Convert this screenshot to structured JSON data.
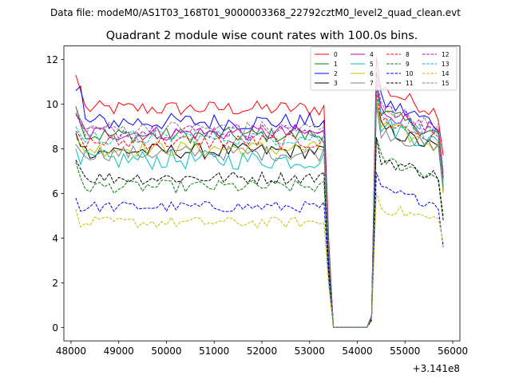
{
  "suptitle": "Data file: modeM0/AS1T03_168T01_9000003368_22792cztM0_level2_quad_clean.evt",
  "chart_data": {
    "type": "line",
    "title": "Quadrant 2 module wise count rates with 100.0s bins.",
    "xlabel": "",
    "ylabel": "",
    "x_offset_label": "+3.141e8",
    "xlim": [
      47850,
      56150
    ],
    "ylim": [
      -0.6,
      12.6
    ],
    "xticks": [
      48000,
      49000,
      50000,
      51000,
      52000,
      53000,
      54000,
      55000,
      56000
    ],
    "xtick_labels": [
      "48000",
      "49000",
      "50000",
      "51000",
      "52000",
      "53000",
      "54000",
      "55000",
      "56000"
    ],
    "yticks": [
      0,
      2,
      4,
      6,
      8,
      10,
      12
    ],
    "ytick_labels": [
      "0",
      "2",
      "4",
      "6",
      "8",
      "10",
      "12"
    ],
    "grid": false,
    "legend_position": "top-right",
    "legend_columns": 4,
    "time_grid": {
      "start": 48100,
      "step": 100,
      "count": 78
    },
    "gap": {
      "start": 53500,
      "end": 54200,
      "value": 0
    },
    "series": [
      {
        "name": "0",
        "color": "#ff0000",
        "dash": "solid",
        "base": 9.8,
        "end": 10.8,
        "first": 11.3,
        "second": 10.6,
        "last": 7.7,
        "noise": 0.35
      },
      {
        "name": "1",
        "color": "#008000",
        "dash": "solid",
        "base": 8.6,
        "end": 9.7,
        "first": 9.9,
        "second": 9.1,
        "last": 6.3,
        "noise": 0.35
      },
      {
        "name": "2",
        "color": "#0000ff",
        "dash": "solid",
        "base": 9.2,
        "end": 10.2,
        "first": 10.6,
        "second": 10.8,
        "last": 6.7,
        "noise": 0.4
      },
      {
        "name": "3",
        "color": "#000000",
        "dash": "solid",
        "base": 7.9,
        "end": 9.0,
        "first": 8.7,
        "second": 8.1,
        "last": 6.1,
        "noise": 0.35
      },
      {
        "name": "4",
        "color": "#c000c0",
        "dash": "solid",
        "base": 8.7,
        "end": 9.8,
        "first": 9.5,
        "second": 9.3,
        "last": 6.6,
        "noise": 0.35
      },
      {
        "name": "5",
        "color": "#00c0c0",
        "dash": "solid",
        "base": 7.5,
        "end": 9.2,
        "first": 8.0,
        "second": 7.3,
        "last": 6.2,
        "noise": 0.45
      },
      {
        "name": "6",
        "color": "#c0c000",
        "dash": "solid",
        "base": 8.0,
        "end": 9.1,
        "first": 8.5,
        "second": 8.2,
        "last": 6.0,
        "noise": 0.35
      },
      {
        "name": "7",
        "color": "#808080",
        "dash": "solid",
        "base": 7.8,
        "end": 8.9,
        "first": 8.2,
        "second": 7.9,
        "last": 6.2,
        "noise": 0.35
      },
      {
        "name": "8",
        "color": "#ff0000",
        "dash": "dashed",
        "base": 8.3,
        "end": 9.4,
        "first": 8.8,
        "second": 8.5,
        "last": 6.6,
        "noise": 0.35
      },
      {
        "name": "9",
        "color": "#008000",
        "dash": "dashed",
        "base": 6.3,
        "end": 7.6,
        "first": 7.4,
        "second": 6.7,
        "last": 5.0,
        "noise": 0.3
      },
      {
        "name": "10",
        "color": "#0000ff",
        "dash": "dashed",
        "base": 5.4,
        "end": 6.2,
        "first": 5.8,
        "second": 5.2,
        "last": 3.6,
        "noise": 0.25
      },
      {
        "name": "11",
        "color": "#000000",
        "dash": "dashed",
        "base": 6.7,
        "end": 7.6,
        "first": 7.5,
        "second": 7.1,
        "last": 4.8,
        "noise": 0.3
      },
      {
        "name": "12",
        "color": "#c000c0",
        "dash": "dashed",
        "base": 8.8,
        "end": 9.9,
        "first": 9.6,
        "second": 9.1,
        "last": 6.8,
        "noise": 0.35
      },
      {
        "name": "13",
        "color": "#00c0c0",
        "dash": "dashed",
        "base": 8.5,
        "end": 9.6,
        "first": 9.0,
        "second": 8.6,
        "last": 6.5,
        "noise": 0.35
      },
      {
        "name": "14",
        "color": "#c0c000",
        "dash": "dashed",
        "base": 4.7,
        "end": 5.4,
        "first": 5.3,
        "second": 4.5,
        "last": 3.8,
        "noise": 0.25
      },
      {
        "name": "15",
        "color": "#808080",
        "dash": "dashed",
        "base": 8.9,
        "end": 10.0,
        "first": 9.9,
        "second": 9.3,
        "last": 7.0,
        "noise": 0.35
      }
    ]
  }
}
